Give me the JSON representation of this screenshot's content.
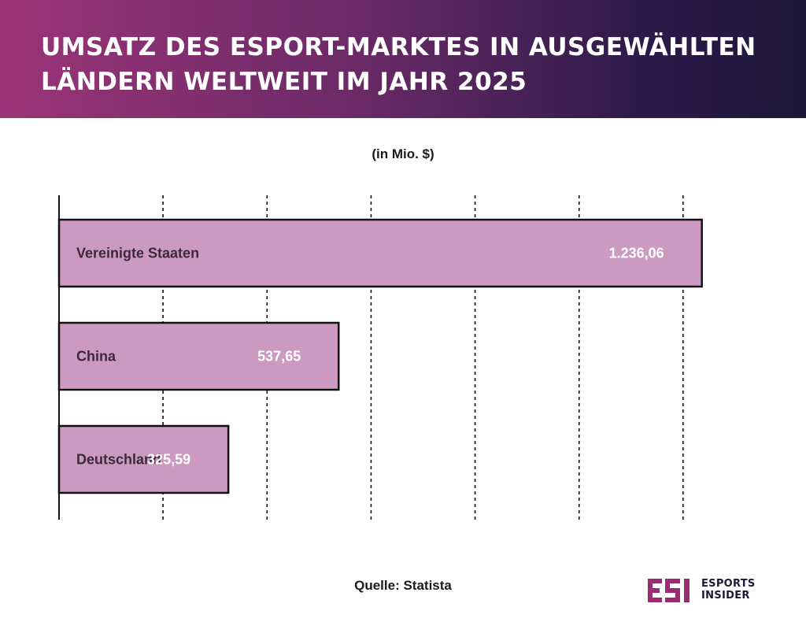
{
  "header": {
    "title": "UMSATZ DES ESPORT-MARKTES IN AUSGEWÄHLTEN LÄNDERN WELTWEIT IM JAHR 2025"
  },
  "chart_data": {
    "type": "bar",
    "orientation": "horizontal",
    "unit_label": "(in Mio. $)",
    "categories": [
      "Vereinigte Staaten",
      "China",
      "Deutschland"
    ],
    "values": [
      1236.06,
      537.65,
      325.59
    ],
    "value_labels": [
      "1.236,06",
      "537,65",
      "325,59"
    ],
    "xlim": [
      0,
      1400
    ],
    "grid": true,
    "bar_color": "#cc99c0"
  },
  "footer": {
    "source": "Quelle: Statista"
  },
  "logo": {
    "mark": "ESI",
    "line1": "ESPORTS",
    "line2": "INSIDER",
    "color": "#9b2c74"
  }
}
